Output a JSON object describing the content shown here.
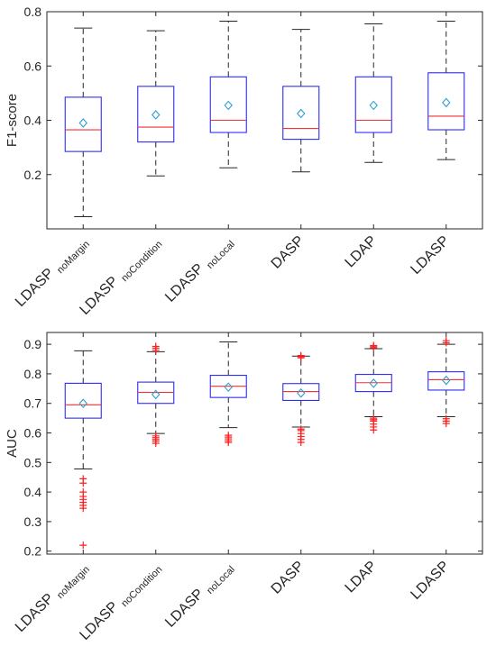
{
  "chart_data": [
    {
      "type": "box",
      "ylabel": "F1-score",
      "ylim": [
        0,
        0.8
      ],
      "yticks": [
        "0.2",
        "0.4",
        "0.6",
        "0.8"
      ],
      "grid": false,
      "categories": [
        {
          "main": "LDASP",
          "sub": "noMargin"
        },
        {
          "main": "LDASP",
          "sub": "noCondition"
        },
        {
          "main": "LDASP",
          "sub": "noLocal"
        },
        {
          "main": "DASP",
          "sub": ""
        },
        {
          "main": "LDAP",
          "sub": ""
        },
        {
          "main": "LDASP",
          "sub": ""
        }
      ],
      "boxes": [
        {
          "whisker_low": 0.045,
          "q1": 0.285,
          "median": 0.365,
          "q3": 0.485,
          "whisker_high": 0.74,
          "mean": 0.39,
          "outliers": []
        },
        {
          "whisker_low": 0.195,
          "q1": 0.32,
          "median": 0.375,
          "q3": 0.525,
          "whisker_high": 0.73,
          "mean": 0.42,
          "outliers": []
        },
        {
          "whisker_low": 0.225,
          "q1": 0.355,
          "median": 0.4,
          "q3": 0.56,
          "whisker_high": 0.765,
          "mean": 0.455,
          "outliers": []
        },
        {
          "whisker_low": 0.21,
          "q1": 0.33,
          "median": 0.37,
          "q3": 0.525,
          "whisker_high": 0.735,
          "mean": 0.425,
          "outliers": []
        },
        {
          "whisker_low": 0.245,
          "q1": 0.355,
          "median": 0.4,
          "q3": 0.56,
          "whisker_high": 0.755,
          "mean": 0.455,
          "outliers": []
        },
        {
          "whisker_low": 0.255,
          "q1": 0.365,
          "median": 0.415,
          "q3": 0.575,
          "whisker_high": 0.765,
          "mean": 0.465,
          "outliers": []
        }
      ]
    },
    {
      "type": "box",
      "ylabel": "AUC",
      "ylim": [
        0.19,
        0.94
      ],
      "yticks": [
        "0.2",
        "0.3",
        "0.4",
        "0.5",
        "0.6",
        "0.7",
        "0.8",
        "0.9"
      ],
      "grid": false,
      "categories": [
        {
          "main": "LDASP",
          "sub": "noMargin"
        },
        {
          "main": "LDASP",
          "sub": "noCondition"
        },
        {
          "main": "LDASP",
          "sub": "noLocal"
        },
        {
          "main": "DASP",
          "sub": ""
        },
        {
          "main": "LDAP",
          "sub": ""
        },
        {
          "main": "LDASP",
          "sub": ""
        }
      ],
      "boxes": [
        {
          "whisker_low": 0.478,
          "q1": 0.65,
          "median": 0.695,
          "q3": 0.768,
          "whisker_high": 0.878,
          "mean": 0.7,
          "outliers": [
            0.22,
            0.345,
            0.355,
            0.365,
            0.375,
            0.385,
            0.4,
            0.43,
            0.445
          ]
        },
        {
          "whisker_low": 0.598,
          "q1": 0.7,
          "median": 0.737,
          "q3": 0.772,
          "whisker_high": 0.875,
          "mean": 0.73,
          "outliers": [
            0.565,
            0.572,
            0.578,
            0.584,
            0.59,
            0.88,
            0.887,
            0.893
          ]
        },
        {
          "whisker_low": 0.618,
          "q1": 0.72,
          "median": 0.758,
          "q3": 0.795,
          "whisker_high": 0.908,
          "mean": 0.755,
          "outliers": [
            0.568,
            0.574,
            0.58,
            0.586,
            0.592
          ]
        },
        {
          "whisker_low": 0.62,
          "q1": 0.71,
          "median": 0.74,
          "q3": 0.767,
          "whisker_high": 0.86,
          "mean": 0.735,
          "outliers": [
            0.568,
            0.578,
            0.588,
            0.598,
            0.608,
            0.613,
            0.854,
            0.858,
            0.862
          ]
        },
        {
          "whisker_low": 0.655,
          "q1": 0.74,
          "median": 0.77,
          "q3": 0.798,
          "whisker_high": 0.885,
          "mean": 0.768,
          "outliers": [
            0.61,
            0.62,
            0.63,
            0.64,
            0.645,
            0.65,
            0.888,
            0.892,
            0.896
          ]
        },
        {
          "whisker_low": 0.655,
          "q1": 0.745,
          "median": 0.78,
          "q3": 0.807,
          "whisker_high": 0.9,
          "mean": 0.778,
          "outliers": [
            0.632,
            0.64,
            0.648,
            0.905,
            0.912
          ]
        }
      ]
    }
  ],
  "colors": {
    "box": "#2d2df2",
    "median": "#f03232",
    "whisker": "#262626",
    "mean": "#2a9fd6",
    "outlier": "#ff1f1f",
    "axis": "#262626"
  }
}
